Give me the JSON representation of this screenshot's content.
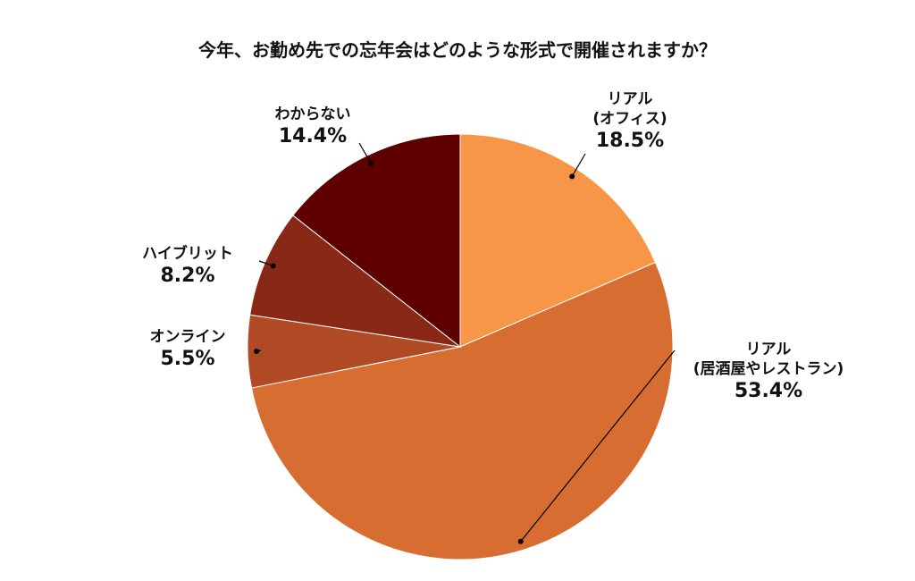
{
  "chart_data": {
    "type": "pie",
    "title": "今年、お勤め先での忘年会はどのような形式で開催されますか？",
    "slices": [
      {
        "label_lines": [
          "リアル",
          "(オフィス)"
        ],
        "value": 18.5,
        "value_label": "18.5%",
        "color": "#F79646"
      },
      {
        "label_lines": [
          "リアル",
          "(居酒屋やレストラン)"
        ],
        "value": 53.4,
        "value_label": "53.4%",
        "color": "#D86D31"
      },
      {
        "label_lines": [
          "オンライン"
        ],
        "value": 5.5,
        "value_label": "5.5%",
        "color": "#B04A25"
      },
      {
        "label_lines": [
          "ハイブリット"
        ],
        "value": 8.2,
        "value_label": "8.2%",
        "color": "#8A2818"
      },
      {
        "label_lines": [
          "わからない"
        ],
        "value": 14.4,
        "value_label": "14.4%",
        "color": "#5E0000"
      }
    ],
    "start_angle_deg": 0,
    "direction": "clockwise",
    "legend": "none"
  }
}
